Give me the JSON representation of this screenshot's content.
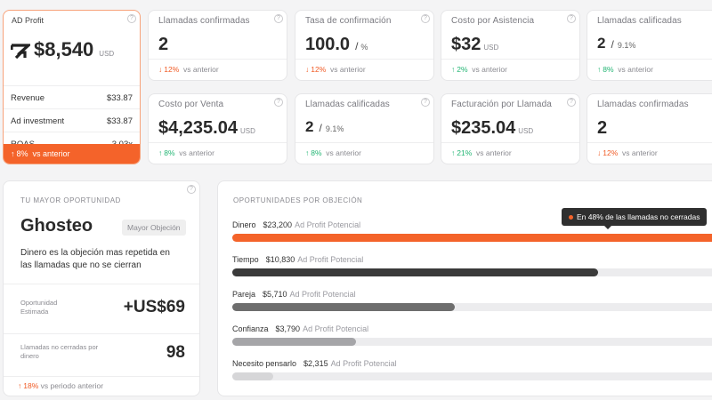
{
  "ad_profit": {
    "title": "AD Profit",
    "value": "$8,540",
    "currency": "USD",
    "rows": [
      {
        "label": "Revenue",
        "value": "$33.87"
      },
      {
        "label": "Ad investment",
        "value": "$33.87"
      },
      {
        "label": "ROAS",
        "value": "3.03x"
      }
    ],
    "trend": "8%",
    "trend_text": "vs anterior"
  },
  "metrics": [
    {
      "title": "Llamadas confirmadas",
      "value": "2",
      "unit": "",
      "suffix": "",
      "suffix_small": "",
      "trend": "12%",
      "dir": "down",
      "trend_text": "vs anterior"
    },
    {
      "title": "Tasa de confirmación",
      "value": "100.0",
      "unit": "",
      "suffix": "/",
      "suffix_small": "%",
      "trend": "12%",
      "dir": "down",
      "trend_text": "vs anterior"
    },
    {
      "title": "Costo por Asistencia",
      "value": "$32",
      "unit": "USD",
      "suffix": "",
      "suffix_small": "",
      "trend": "2%",
      "dir": "up",
      "trend_text": "vs anterior"
    },
    {
      "title": "Llamadas calificadas",
      "value": "2",
      "unit": "",
      "suffix": "/",
      "suffix_small": "9.1%",
      "trend": "8%",
      "dir": "up",
      "trend_text": "vs anterior"
    },
    {
      "title": "Costo por Venta",
      "value": "$4,235.04",
      "unit": "USD",
      "suffix": "",
      "suffix_small": "",
      "trend": "8%",
      "dir": "up",
      "trend_text": "vs anterior"
    },
    {
      "title": "Llamadas calificadas",
      "value": "2",
      "unit": "",
      "suffix": "/",
      "suffix_small": "9.1%",
      "trend": "8%",
      "dir": "up",
      "trend_text": "vs anterior"
    },
    {
      "title": "Facturación por Llamada",
      "value": "$235.04",
      "unit": "USD",
      "suffix": "",
      "suffix_small": "",
      "trend": "21%",
      "dir": "up",
      "trend_text": "vs anterior"
    },
    {
      "title": "Llamadas confirmadas",
      "value": "2",
      "unit": "",
      "suffix": "",
      "suffix_small": "",
      "trend": "12%",
      "dir": "down",
      "trend_text": "vs anterior"
    }
  ],
  "opportunity": {
    "heading": "TU MAYOR OPORTUNIDAD",
    "name": "Ghosteo",
    "badge": "Mayor Objeción",
    "description": "Dinero es la objeción mas repetida en las llamadas que no se cierran",
    "est_label": "Oportunidad Estimada",
    "est_value": "+US$69",
    "calls_label": "Llamadas no cerradas por dinero",
    "calls_value": "98",
    "trend": "18%",
    "trend_text": "vs periodo anterior"
  },
  "objections": {
    "heading": "OPORTUNIDADES POR OBJECIÓN",
    "tooltip": "En 48% de las llamadas no cerradas",
    "potential_label": "Ad Profit Potencial",
    "items": [
      {
        "name": "Dinero",
        "amount": "$23,200",
        "fraction": 1.0,
        "color": "#f4632a"
      },
      {
        "name": "Tiempo",
        "amount": "$10,830",
        "fraction": 0.74,
        "color": "#3a3a3a"
      },
      {
        "name": "Pareja",
        "amount": "$5,710",
        "fraction": 0.45,
        "color": "#6e6e6e"
      },
      {
        "name": "Confianza",
        "amount": "$3,790",
        "fraction": 0.25,
        "color": "#a5a5a8"
      },
      {
        "name": "Necesito pensarlo",
        "amount": "$2,315",
        "fraction": 0.083,
        "color": "#d6d6d8"
      }
    ]
  }
}
